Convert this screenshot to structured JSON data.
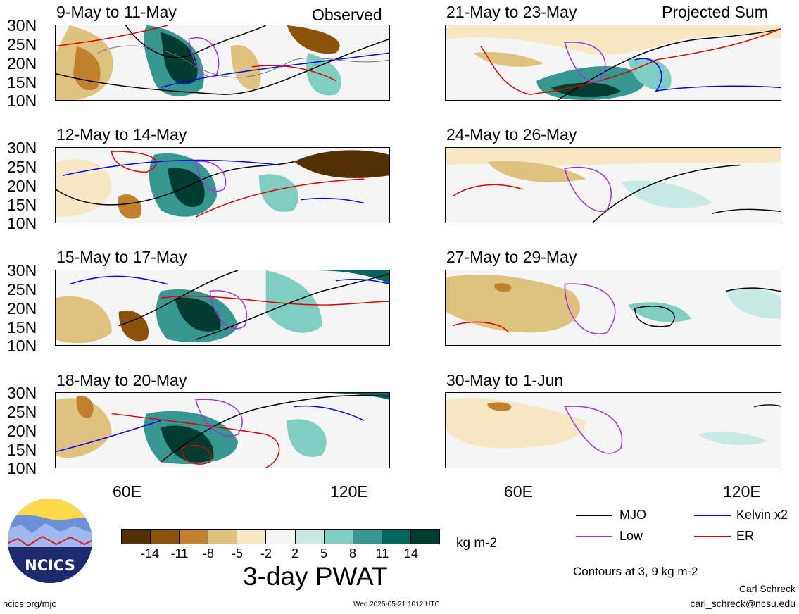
{
  "left_tag": "Observed",
  "right_tag": "Projected Sum",
  "panels": [
    {
      "title": "9-May to 11-May"
    },
    {
      "title": "21-May to 23-May"
    },
    {
      "title": "12-May to 14-May"
    },
    {
      "title": "24-May to 26-May"
    },
    {
      "title": "15-May to 17-May"
    },
    {
      "title": "27-May to 29-May"
    },
    {
      "title": "18-May to 20-May"
    },
    {
      "title": "30-May to 1-Jun"
    }
  ],
  "lat_labels": [
    "30N",
    "25N",
    "20N",
    "15N",
    "10N"
  ],
  "lon_labels": [
    "60E",
    "120E"
  ],
  "colorbar": {
    "ticks": [
      "-14",
      "-11",
      "-8",
      "-5",
      "-2",
      "2",
      "5",
      "8",
      "11",
      "14"
    ],
    "colors": [
      "#543005",
      "#8c510a",
      "#bf812d",
      "#dfc27d",
      "#f6e8c3",
      "#f5f5f5",
      "#c7eae5",
      "#80cdc1",
      "#35978f",
      "#01665e",
      "#003c30"
    ],
    "units": "kg m-2",
    "title": "3-day PWAT"
  },
  "legend": {
    "mjo": {
      "label": "MJO",
      "color": "#000000"
    },
    "kelvin": {
      "label": "Kelvin x2",
      "color": "#0000ff"
    },
    "low": {
      "label": "Low",
      "color": "#a030e0"
    },
    "er": {
      "label": "ER",
      "color": "#e00000"
    }
  },
  "contours_note": "Contours at 3, 9 kg m-2",
  "author": "Carl Schreck",
  "email": "carl_schreck@ncsu.edu",
  "site": "ncics.org/mjo",
  "timestamp": "Wed 2025-05-21 1012 UTC",
  "logo_text": "NCICS"
}
